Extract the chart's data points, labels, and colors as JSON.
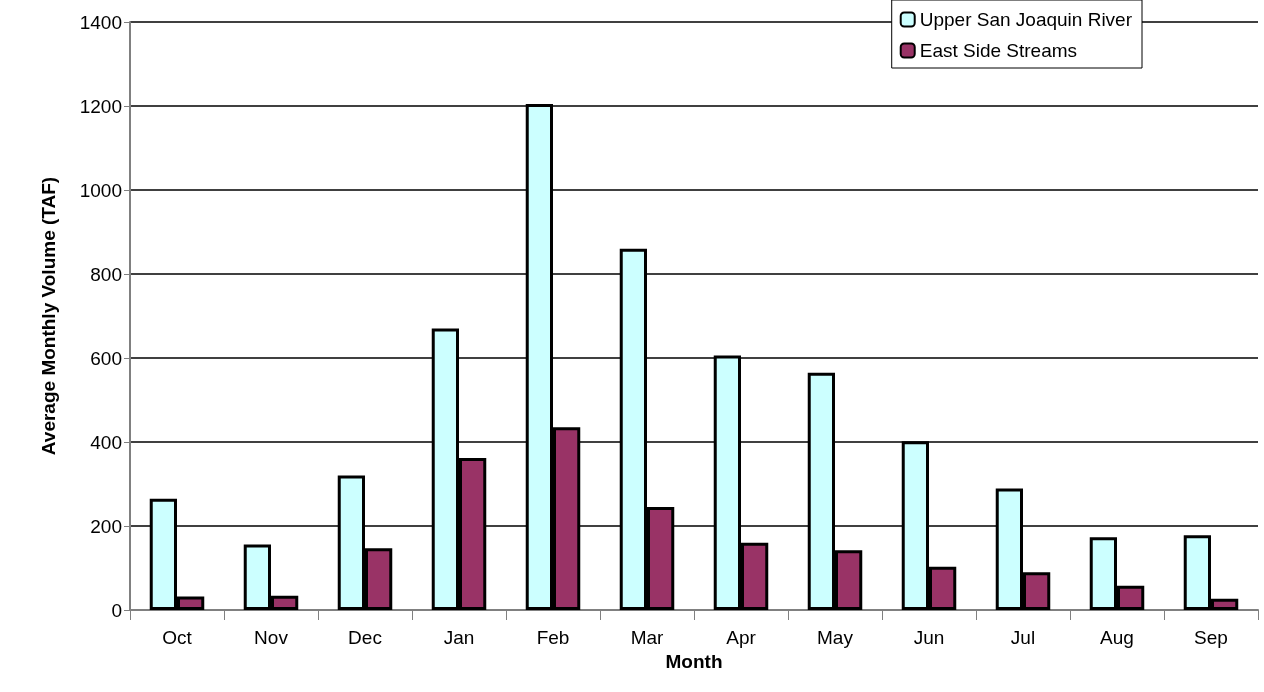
{
  "chart_data": {
    "type": "bar",
    "xlabel": "Month",
    "ylabel": "Average Monthly Volume (TAF)",
    "categories": [
      "Oct",
      "Nov",
      "Dec",
      "Jan",
      "Feb",
      "Mar",
      "Apr",
      "May",
      "Jun",
      "Jul",
      "Aug",
      "Sep"
    ],
    "series": [
      {
        "name": "Upper San Joaquin River",
        "color": "#ccffff",
        "values": [
          265,
          156,
          320,
          670,
          1205,
          860,
          606,
          565,
          402,
          289,
          173,
          178
        ]
      },
      {
        "name": "East Side Streams",
        "color": "#993366",
        "values": [
          32,
          34,
          147,
          362,
          435,
          245,
          160,
          142,
          103,
          90,
          58,
          27
        ]
      }
    ],
    "ylim": [
      0,
      1400
    ],
    "yticks": [
      0,
      200,
      400,
      600,
      800,
      1000,
      1200,
      1400
    ],
    "grid": "y",
    "legend": "top right"
  }
}
